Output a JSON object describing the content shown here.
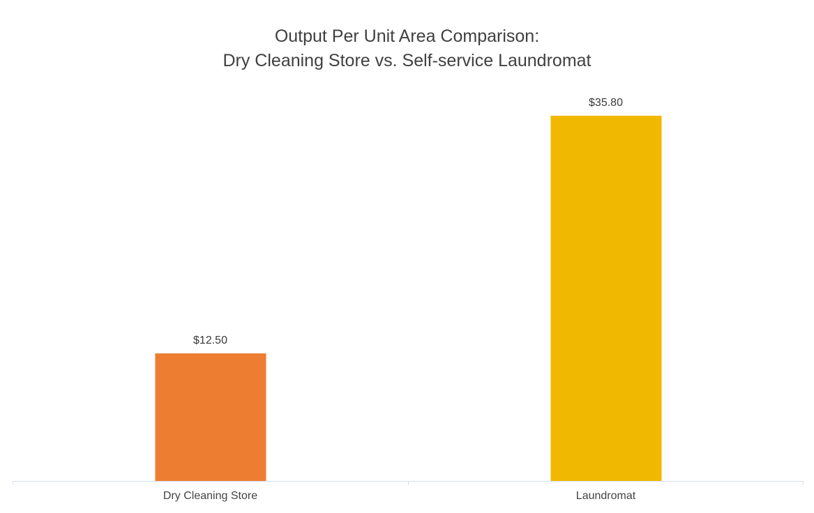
{
  "title": {
    "line1": "Output Per Unit Area Comparison:",
    "line2": "Dry Cleaning Store vs. Self-service Laundromat"
  },
  "chart_data": {
    "type": "bar",
    "title": "Output Per Unit Area Comparison: Dry Cleaning Store vs. Self-service Laundromat",
    "categories": [
      "Dry Cleaning Store",
      "Laundromat"
    ],
    "values": [
      12.5,
      35.8
    ],
    "value_labels": [
      "$12.50",
      "$35.80"
    ],
    "bar_colors": [
      "#ED7D31",
      "#F0B900"
    ],
    "xlabel": "",
    "ylabel": "",
    "ylim": [
      0,
      40
    ],
    "grid": false,
    "legend": false,
    "y_axis_visible": false,
    "axis_line_color": "#D6DDEB",
    "text_color": "#404040",
    "background_color": "#FFFFFF"
  }
}
